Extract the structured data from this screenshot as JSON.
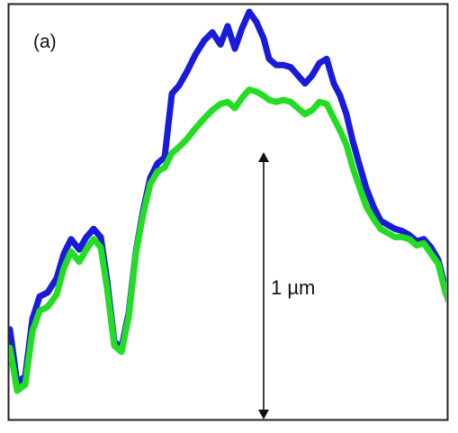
{
  "panel_label": "(a)",
  "scale_bar_label": "1 µm",
  "chart_data": {
    "type": "line",
    "title": "",
    "xlabel": "",
    "ylabel": "",
    "x_unit": "px",
    "y_unit": "um",
    "xlim": [
      0,
      497
    ],
    "ylim": [
      0,
      2.03
    ],
    "axes_visible": false,
    "grid": false,
    "legend": "none",
    "series": [
      {
        "color": "#1a1adb",
        "x": [
          0,
          8,
          17,
          25,
          33,
          42,
          52,
          60,
          68,
          77,
          85,
          93,
          101,
          108,
          116,
          124,
          132,
          140,
          148,
          156,
          164,
          172,
          180,
          188,
          197,
          206,
          216,
          225,
          234,
          242,
          250,
          258,
          266,
          274,
          282,
          288,
          296,
          304,
          312,
          320,
          328,
          336,
          344,
          352,
          360,
          367,
          374,
          381,
          388,
          396,
          404,
          412,
          420,
          428,
          436,
          444,
          452,
          460,
          468,
          476,
          484,
          492,
          497
        ],
        "y": [
          0.44,
          0.18,
          0.21,
          0.49,
          0.6,
          0.62,
          0.69,
          0.81,
          0.88,
          0.83,
          0.89,
          0.93,
          0.89,
          0.68,
          0.38,
          0.35,
          0.52,
          0.82,
          1.02,
          1.18,
          1.25,
          1.28,
          1.59,
          1.63,
          1.7,
          1.78,
          1.85,
          1.89,
          1.83,
          1.92,
          1.81,
          1.91,
          1.99,
          1.94,
          1.86,
          1.76,
          1.73,
          1.73,
          1.72,
          1.68,
          1.64,
          1.68,
          1.74,
          1.76,
          1.64,
          1.58,
          1.49,
          1.36,
          1.25,
          1.13,
          1.04,
          0.97,
          0.95,
          0.93,
          0.92,
          0.9,
          0.87,
          0.88,
          0.84,
          0.78,
          0.64,
          0.54,
          0.52
        ]
      },
      {
        "color": "#22dd22",
        "x": [
          0,
          8,
          17,
          25,
          33,
          42,
          52,
          60,
          68,
          77,
          85,
          93,
          101,
          108,
          116,
          124,
          132,
          140,
          148,
          156,
          164,
          172,
          180,
          188,
          197,
          206,
          216,
          225,
          234,
          242,
          250,
          258,
          266,
          274,
          282,
          288,
          296,
          304,
          312,
          320,
          328,
          336,
          344,
          352,
          360,
          367,
          374,
          381,
          388,
          396,
          404,
          412,
          420,
          428,
          436,
          444,
          452,
          460,
          468,
          476,
          484,
          492,
          497
        ],
        "y": [
          0.35,
          0.14,
          0.17,
          0.43,
          0.53,
          0.55,
          0.61,
          0.74,
          0.82,
          0.77,
          0.83,
          0.88,
          0.84,
          0.64,
          0.36,
          0.33,
          0.5,
          0.81,
          1.0,
          1.15,
          1.21,
          1.23,
          1.3,
          1.33,
          1.37,
          1.42,
          1.47,
          1.51,
          1.54,
          1.55,
          1.52,
          1.57,
          1.61,
          1.6,
          1.58,
          1.56,
          1.55,
          1.56,
          1.55,
          1.52,
          1.49,
          1.51,
          1.55,
          1.54,
          1.47,
          1.41,
          1.34,
          1.23,
          1.14,
          1.04,
          0.98,
          0.93,
          0.91,
          0.89,
          0.89,
          0.88,
          0.85,
          0.86,
          0.81,
          0.76,
          0.62,
          0.53,
          0.51
        ]
      }
    ],
    "annotations": [
      {
        "type": "double-arrow",
        "label": "1 µm",
        "from_y": 0,
        "to_y": 1.0
      }
    ]
  }
}
